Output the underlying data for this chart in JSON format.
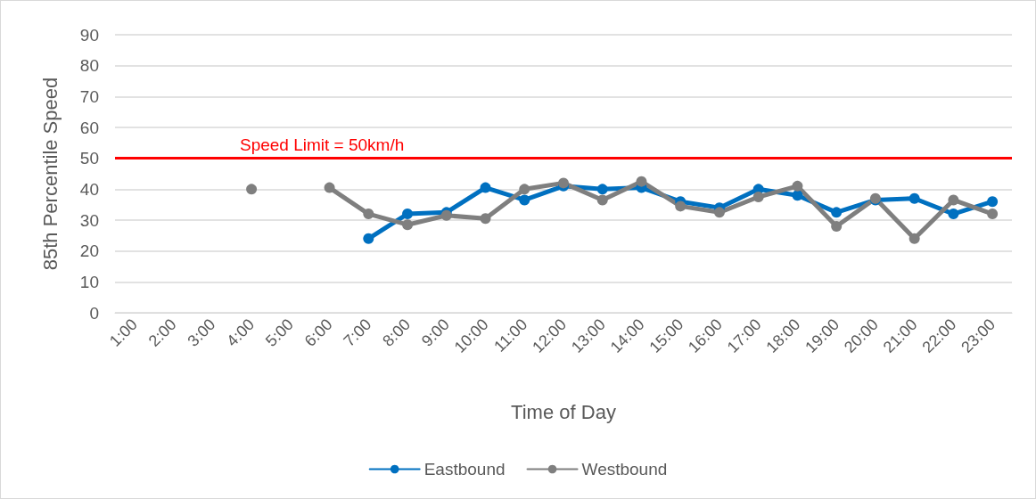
{
  "chart_data": {
    "type": "line",
    "xlabel": "Time of Day",
    "ylabel": "85th Percentile Speed",
    "categories": [
      "1:00",
      "2:00",
      "3:00",
      "4:00",
      "5:00",
      "6:00",
      "7:00",
      "8:00",
      "9:00",
      "10:00",
      "11:00",
      "12:00",
      "13:00",
      "14:00",
      "15:00",
      "16:00",
      "17:00",
      "18:00",
      "19:00",
      "20:00",
      "21:00",
      "22:00",
      "23:00"
    ],
    "series": [
      {
        "name": "Eastbound",
        "color": "#0070c0",
        "values": [
          null,
          null,
          null,
          null,
          null,
          null,
          24,
          32,
          32.5,
          40.5,
          36.5,
          41,
          40,
          40.5,
          36,
          34,
          40,
          38,
          32.5,
          36.5,
          37,
          32,
          36
        ]
      },
      {
        "name": "Westbound",
        "color": "#7f7f7f",
        "values": [
          null,
          null,
          null,
          40,
          null,
          40.5,
          32,
          28.5,
          31.5,
          30.5,
          40,
          42,
          36.5,
          42.5,
          34.5,
          32.5,
          37.5,
          41,
          28,
          37,
          24,
          36.5,
          32
        ]
      }
    ],
    "ylim": [
      0,
      90
    ],
    "yticks": [
      0,
      10,
      20,
      30,
      40,
      50,
      60,
      70,
      80,
      90
    ],
    "ref_lines": [
      {
        "axis": "y",
        "value": 50,
        "label": "Speed Limit = 50km/h",
        "color": "#ff0000"
      }
    ],
    "grid": "y",
    "legend": "bottom",
    "marker": "circle",
    "line_style": "solid"
  }
}
